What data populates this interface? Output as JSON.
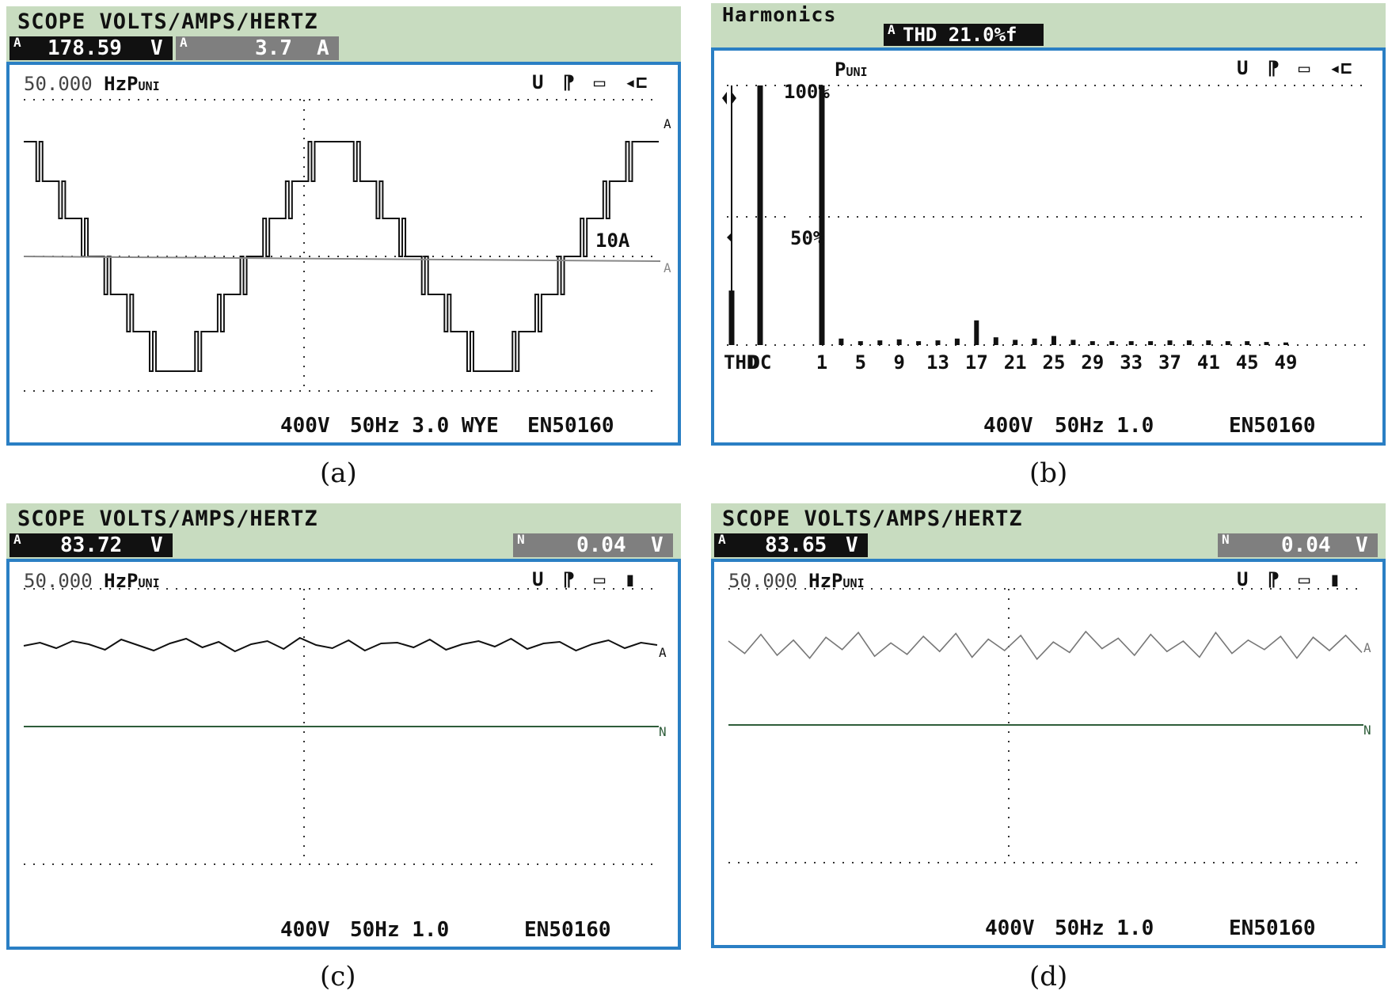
{
  "panels": {
    "a": {
      "title": "SCOPE VOLTS/AMPS/HERTZ",
      "readout1": {
        "channel": "A",
        "value": "178.59",
        "unit": "V"
      },
      "readout2": {
        "channel": "A",
        "value": "3.7",
        "unit": "A"
      },
      "freq": "50.000",
      "freq_unit": "HzP",
      "freq_sub": "UNI",
      "icons": [
        "U",
        "P",
        "tape-icon",
        "plug-icon"
      ],
      "scale_label": "10A",
      "trace_labels": [
        "A",
        "A"
      ],
      "footer": [
        "400V",
        "50Hz 3.0 WYE",
        "EN50160"
      ],
      "caption": "(a)"
    },
    "b": {
      "title": "Harmonics",
      "readout1": {
        "channel": "A",
        "value": "THD 21.0%f"
      },
      "top_label": "P",
      "top_label_sub": "UNI",
      "icons": [
        "U",
        "P",
        "tape-icon",
        "plug-icon"
      ],
      "pct_100": "100%",
      "pct_50": "50%",
      "footer": [
        "400V",
        "50Hz 1.0",
        "EN50160"
      ],
      "caption": "(b)"
    },
    "c": {
      "title": "SCOPE VOLTS/AMPS/HERTZ",
      "readout1": {
        "channel": "A",
        "value": "83.72",
        "unit": "V"
      },
      "readout2": {
        "channel": "N",
        "value": "0.04",
        "unit": "V"
      },
      "freq": "50.000",
      "freq_unit": "HzP",
      "freq_sub": "UNI",
      "icons": [
        "U",
        "P",
        "tape-icon",
        "battery-icon"
      ],
      "trace_labels": [
        "A",
        "N"
      ],
      "footer": [
        "400V",
        "50Hz 1.0",
        "EN50160"
      ],
      "caption": "(c)"
    },
    "d": {
      "title": "SCOPE VOLTS/AMPS/HERTZ",
      "readout1": {
        "channel": "A",
        "value": "83.65",
        "unit": "V"
      },
      "readout2": {
        "channel": "N",
        "value": "0.04",
        "unit": "V"
      },
      "freq": "50.000",
      "freq_unit": "HzP",
      "freq_sub": "UNI",
      "icons": [
        "U",
        "P",
        "tape-icon",
        "battery-icon"
      ],
      "trace_labels": [
        "A",
        "N"
      ],
      "footer": [
        "400V",
        "50Hz 1.0",
        "EN50160"
      ],
      "caption": "(d)"
    }
  },
  "chart_data": [
    {
      "type": "line",
      "panel": "a",
      "title": "SCOPE VOLTS/AMPS/HERTZ",
      "series": [
        {
          "name": "A",
          "description_values": "stepped multilevel voltage waveform, ~2 cycles"
        },
        {
          "name": "A",
          "values": [
            0,
            0
          ]
        }
      ],
      "grid": true,
      "annotations": [
        "10A"
      ]
    },
    {
      "type": "bar",
      "panel": "b",
      "title": "Harmonics",
      "categories": [
        "THD",
        "DC",
        "1",
        "3",
        "5",
        "7",
        "9",
        "11",
        "13",
        "15",
        "17",
        "19",
        "21",
        "23",
        "25",
        "27",
        "29",
        "31",
        "33",
        "35",
        "37",
        "39",
        "41",
        "43",
        "45",
        "47",
        "49"
      ],
      "values": [
        21,
        100,
        100,
        2.5,
        1.5,
        1.8,
        2.2,
        1.5,
        1.8,
        2.5,
        9.5,
        3,
        2,
        2.5,
        3.5,
        2,
        1.5,
        1.5,
        1.5,
        1.5,
        1.8,
        1.8,
        1.8,
        1.5,
        1.5,
        1.2,
        1
      ],
      "x_tick_labels": [
        "THD",
        "DC",
        "1",
        "5",
        "9",
        "13",
        "17",
        "21",
        "25",
        "29",
        "33",
        "37",
        "41",
        "45",
        "49"
      ],
      "y_tick_labels": [
        "100%",
        "50%"
      ],
      "ylim": [
        0,
        100
      ],
      "grid": true
    },
    {
      "type": "line",
      "panel": "c",
      "title": "SCOPE VOLTS/AMPS/HERTZ",
      "series": [
        {
          "name": "A",
          "values": [
            0.0,
            0.4,
            -0.3,
            0.6,
            0.2,
            -0.5,
            0.8,
            0.1,
            -0.6,
            0.3,
            0.9,
            -0.2,
            0.5,
            -0.7,
            0.2,
            0.6,
            -0.4,
            1.0,
            0.1,
            -0.3,
            0.7,
            -0.6,
            0.3,
            0.4,
            -0.2,
            0.8,
            -0.5,
            0.2,
            0.6,
            -0.1,
            0.9,
            -0.4,
            0.3,
            0.5,
            -0.6,
            0.2,
            0.7,
            -0.3,
            0.4,
            0.1
          ]
        },
        {
          "name": "N",
          "values": [
            0,
            0
          ]
        }
      ],
      "grid": true
    },
    {
      "type": "line",
      "panel": "d",
      "title": "SCOPE VOLTS/AMPS/HERTZ",
      "series": [
        {
          "name": "A",
          "values": [
            0.5,
            -0.8,
            1.2,
            -1.0,
            0.6,
            -1.3,
            0.9,
            -0.4,
            1.4,
            -1.1,
            0.3,
            -0.9,
            1.0,
            -0.6,
            1.3,
            -1.2,
            0.7,
            -0.5,
            1.1,
            -1.4,
            0.4,
            -0.7,
            1.5,
            -0.3,
            0.8,
            -1.0,
            1.2,
            -0.6,
            0.5,
            -1.2,
            1.4,
            -0.8,
            0.6,
            -0.4,
            1.0,
            -1.3,
            0.9,
            -0.5,
            1.1,
            -0.7
          ]
        },
        {
          "name": "N",
          "values": [
            0,
            0
          ]
        }
      ],
      "grid": true
    }
  ]
}
